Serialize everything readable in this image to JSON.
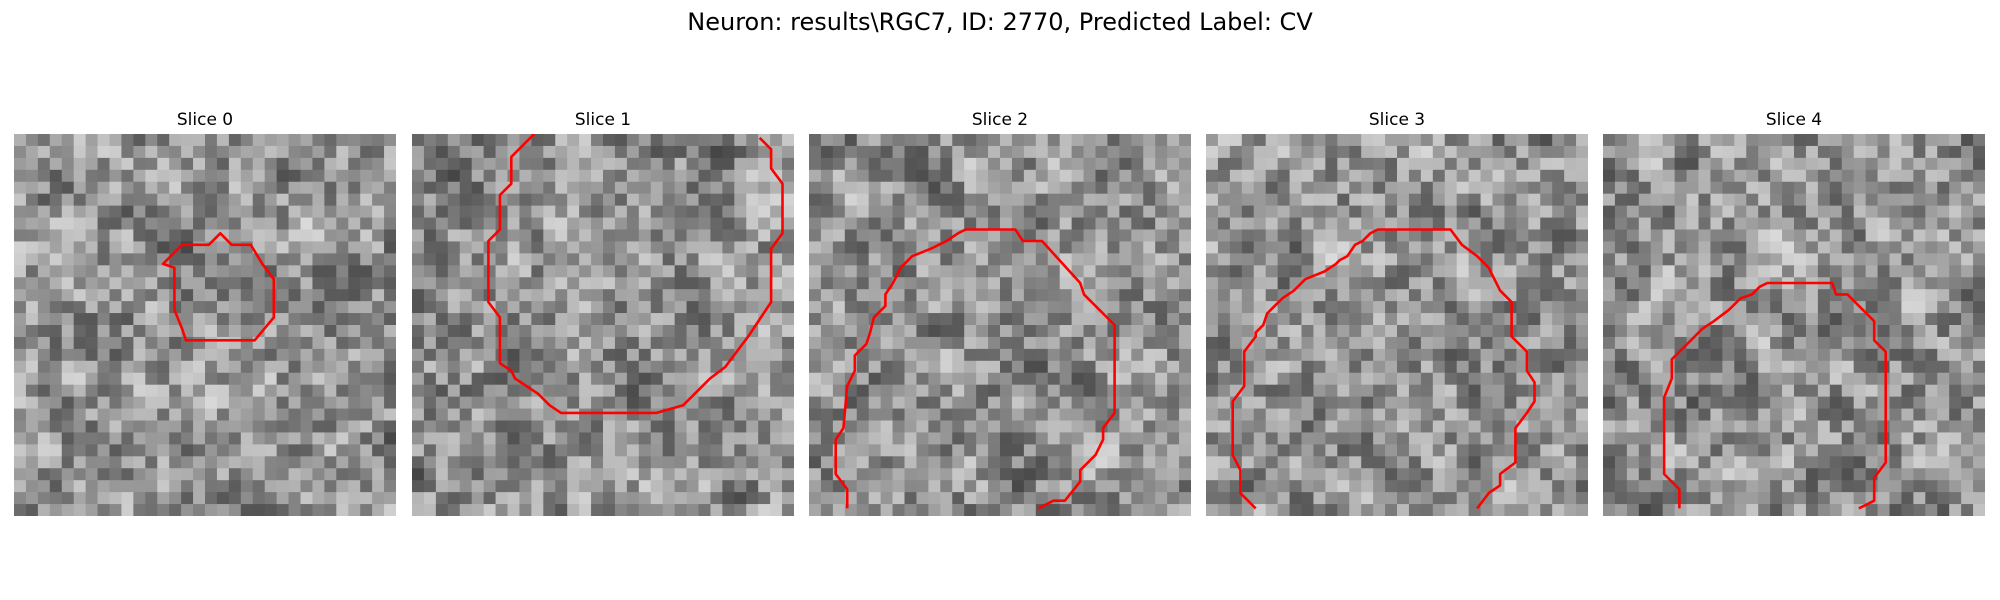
{
  "figure": {
    "title": "Neuron: results\\RGC7, ID: 2770, Predicted Label: CV",
    "contour_color": "#ff0000"
  },
  "panels": [
    {
      "title": "Slice 0",
      "seed": 11,
      "contour": [
        [
          0.39,
          0.34
        ],
        [
          0.44,
          0.29
        ],
        [
          0.51,
          0.29
        ],
        [
          0.54,
          0.26
        ],
        [
          0.57,
          0.29
        ],
        [
          0.62,
          0.29
        ],
        [
          0.65,
          0.34
        ],
        [
          0.68,
          0.38
        ],
        [
          0.68,
          0.48
        ],
        [
          0.63,
          0.54
        ],
        [
          0.6,
          0.54
        ],
        [
          0.45,
          0.54
        ],
        [
          0.44,
          0.51
        ],
        [
          0.42,
          0.46
        ],
        [
          0.42,
          0.35
        ]
      ],
      "closed": true
    },
    {
      "title": "Slice 1",
      "seed": 23,
      "contour": [
        [
          0.32,
          0.0
        ],
        [
          0.26,
          0.06
        ],
        [
          0.26,
          0.13
        ],
        [
          0.23,
          0.16
        ],
        [
          0.23,
          0.25
        ],
        [
          0.2,
          0.28
        ],
        [
          0.2,
          0.44
        ],
        [
          0.23,
          0.48
        ],
        [
          0.23,
          0.6
        ],
        [
          0.26,
          0.62
        ],
        [
          0.27,
          0.64
        ],
        [
          0.33,
          0.68
        ],
        [
          0.36,
          0.71
        ],
        [
          0.39,
          0.73
        ],
        [
          0.64,
          0.73
        ],
        [
          0.71,
          0.71
        ],
        [
          0.74,
          0.68
        ],
        [
          0.78,
          0.64
        ],
        [
          0.82,
          0.61
        ],
        [
          0.85,
          0.57
        ],
        [
          0.88,
          0.53
        ],
        [
          0.94,
          0.44
        ],
        [
          0.94,
          0.3
        ],
        [
          0.97,
          0.26
        ],
        [
          0.97,
          0.13
        ],
        [
          0.94,
          0.09
        ],
        [
          0.94,
          0.04
        ],
        [
          0.91,
          0.01
        ]
      ],
      "closed": false
    },
    {
      "title": "Slice 2",
      "seed": 37,
      "contour": [
        [
          0.1,
          0.98
        ],
        [
          0.1,
          0.93
        ],
        [
          0.07,
          0.89
        ],
        [
          0.07,
          0.8
        ],
        [
          0.09,
          0.77
        ],
        [
          0.1,
          0.66
        ],
        [
          0.12,
          0.62
        ],
        [
          0.12,
          0.58
        ],
        [
          0.15,
          0.55
        ],
        [
          0.16,
          0.52
        ],
        [
          0.17,
          0.48
        ],
        [
          0.2,
          0.45
        ],
        [
          0.2,
          0.42
        ],
        [
          0.22,
          0.39
        ],
        [
          0.24,
          0.35
        ],
        [
          0.26,
          0.33
        ],
        [
          0.27,
          0.32
        ],
        [
          0.32,
          0.3
        ],
        [
          0.36,
          0.28
        ],
        [
          0.39,
          0.26
        ],
        [
          0.41,
          0.25
        ],
        [
          0.54,
          0.25
        ],
        [
          0.56,
          0.28
        ],
        [
          0.61,
          0.28
        ],
        [
          0.71,
          0.39
        ],
        [
          0.72,
          0.42
        ],
        [
          0.75,
          0.45
        ],
        [
          0.8,
          0.5
        ],
        [
          0.8,
          0.73
        ],
        [
          0.77,
          0.77
        ],
        [
          0.77,
          0.8
        ],
        [
          0.75,
          0.84
        ],
        [
          0.71,
          0.88
        ],
        [
          0.71,
          0.91
        ],
        [
          0.67,
          0.96
        ],
        [
          0.64,
          0.96
        ],
        [
          0.6,
          0.98
        ]
      ],
      "closed": false
    },
    {
      "title": "Slice 3",
      "seed": 51,
      "contour": [
        [
          0.13,
          0.98
        ],
        [
          0.09,
          0.94
        ],
        [
          0.09,
          0.88
        ],
        [
          0.07,
          0.84
        ],
        [
          0.07,
          0.7
        ],
        [
          0.1,
          0.66
        ],
        [
          0.1,
          0.57
        ],
        [
          0.13,
          0.53
        ],
        [
          0.13,
          0.52
        ],
        [
          0.15,
          0.5
        ],
        [
          0.16,
          0.47
        ],
        [
          0.2,
          0.43
        ],
        [
          0.23,
          0.41
        ],
        [
          0.26,
          0.38
        ],
        [
          0.31,
          0.36
        ],
        [
          0.34,
          0.34
        ],
        [
          0.35,
          0.33
        ],
        [
          0.37,
          0.32
        ],
        [
          0.39,
          0.29
        ],
        [
          0.41,
          0.28
        ],
        [
          0.43,
          0.26
        ],
        [
          0.45,
          0.25
        ],
        [
          0.56,
          0.25
        ],
        [
          0.64,
          0.25
        ],
        [
          0.67,
          0.29
        ],
        [
          0.71,
          0.32
        ],
        [
          0.74,
          0.35
        ],
        [
          0.77,
          0.41
        ],
        [
          0.8,
          0.44
        ],
        [
          0.8,
          0.53
        ],
        [
          0.84,
          0.57
        ],
        [
          0.84,
          0.62
        ],
        [
          0.86,
          0.65
        ],
        [
          0.86,
          0.7
        ],
        [
          0.84,
          0.73
        ],
        [
          0.81,
          0.77
        ],
        [
          0.81,
          0.86
        ],
        [
          0.77,
          0.89
        ],
        [
          0.77,
          0.92
        ],
        [
          0.74,
          0.94
        ],
        [
          0.71,
          0.98
        ]
      ],
      "closed": false
    },
    {
      "title": "Slice 4",
      "seed": 67,
      "contour": [
        [
          0.2,
          0.98
        ],
        [
          0.2,
          0.93
        ],
        [
          0.16,
          0.89
        ],
        [
          0.16,
          0.69
        ],
        [
          0.18,
          0.64
        ],
        [
          0.18,
          0.59
        ],
        [
          0.2,
          0.57
        ],
        [
          0.23,
          0.54
        ],
        [
          0.26,
          0.51
        ],
        [
          0.29,
          0.49
        ],
        [
          0.33,
          0.46
        ],
        [
          0.36,
          0.43
        ],
        [
          0.39,
          0.42
        ],
        [
          0.41,
          0.4
        ],
        [
          0.43,
          0.39
        ],
        [
          0.6,
          0.39
        ],
        [
          0.61,
          0.42
        ],
        [
          0.64,
          0.42
        ],
        [
          0.67,
          0.45
        ],
        [
          0.71,
          0.49
        ],
        [
          0.71,
          0.54
        ],
        [
          0.74,
          0.57
        ],
        [
          0.74,
          0.86
        ],
        [
          0.71,
          0.9
        ],
        [
          0.71,
          0.96
        ],
        [
          0.67,
          0.98
        ]
      ],
      "closed": false
    }
  ]
}
